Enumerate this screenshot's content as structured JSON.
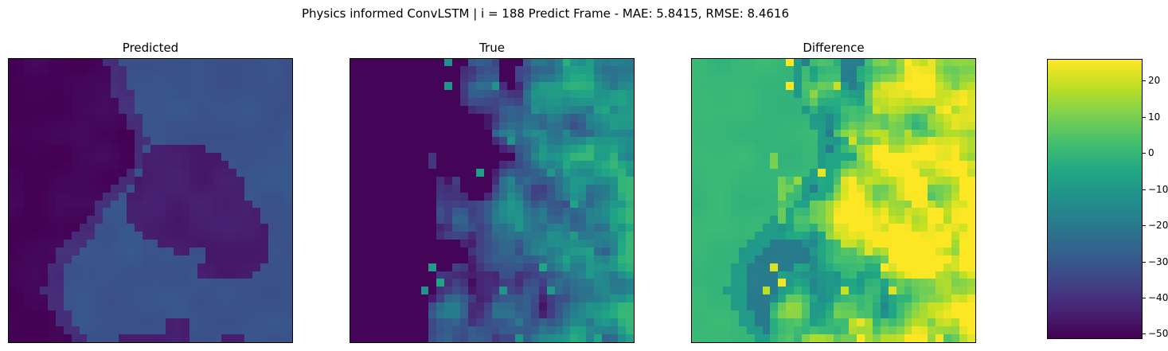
{
  "title": "Physics informed ConvLSTM | i = 188 Predict Frame - MAE: 5.8415, RMSE: 8.4616",
  "panels": [
    {
      "title": "Predicted"
    },
    {
      "title": "True"
    },
    {
      "title": "Difference"
    }
  ],
  "colormap": "viridis",
  "chart_data": {
    "type": "heatmap",
    "title": "Physics informed ConvLSTM | i = 188 Predict Frame - MAE: 5.8415, RMSE: 8.4616",
    "subplots": [
      "Predicted",
      "True",
      "Difference"
    ],
    "grid": "off",
    "axes_ticks": "none",
    "colorbar": {
      "range": [
        -51,
        26
      ],
      "ticks": [
        20,
        10,
        0,
        -10,
        -20,
        -30,
        -40,
        -50
      ],
      "tick_labels": [
        "20",
        "10",
        "0",
        "−10",
        "−20",
        "−30",
        "−40",
        "−50"
      ],
      "colormap": "viridis"
    },
    "mae": 5.8415,
    "rmse": 8.4616,
    "frame_index": 188
  }
}
